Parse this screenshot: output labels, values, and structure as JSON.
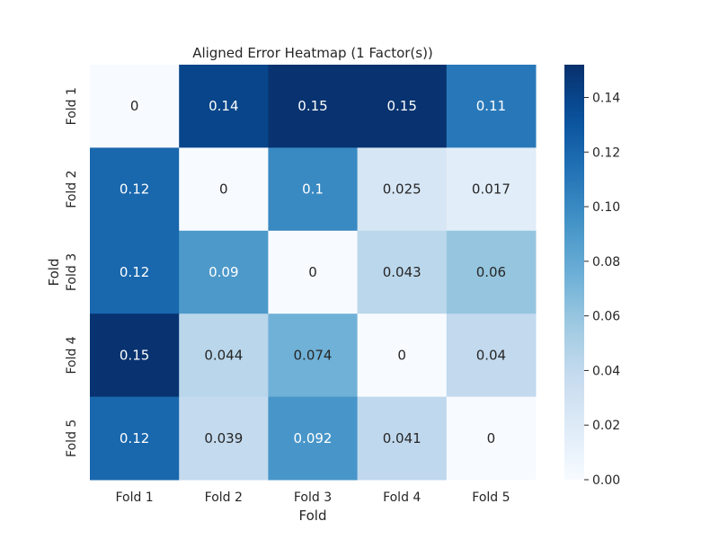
{
  "chart_data": {
    "type": "heatmap",
    "title": "Aligned Error Heatmap (1 Factor(s))",
    "xlabel": "Fold",
    "ylabel": "Fold",
    "x_categories": [
      "Fold 1",
      "Fold 2",
      "Fold 3",
      "Fold 4",
      "Fold 5"
    ],
    "y_categories": [
      "Fold 1",
      "Fold 2",
      "Fold 3",
      "Fold 4",
      "Fold 5"
    ],
    "values": [
      [
        0,
        0.14,
        0.15,
        0.15,
        0.11
      ],
      [
        0.12,
        0,
        0.1,
        0.025,
        0.017
      ],
      [
        0.12,
        0.09,
        0,
        0.043,
        0.06
      ],
      [
        0.15,
        0.044,
        0.074,
        0,
        0.04
      ],
      [
        0.12,
        0.039,
        0.092,
        0.041,
        0
      ]
    ],
    "annotations": [
      [
        "0",
        "0.14",
        "0.15",
        "0.15",
        "0.11"
      ],
      [
        "0.12",
        "0",
        "0.1",
        "0.025",
        "0.017"
      ],
      [
        "0.12",
        "0.09",
        "0",
        "0.043",
        "0.06"
      ],
      [
        "0.15",
        "0.044",
        "0.074",
        "0",
        "0.04"
      ],
      [
        "0.12",
        "0.039",
        "0.092",
        "0.041",
        "0"
      ]
    ],
    "color_range": [
      0,
      0.152
    ],
    "colormap": "Blues",
    "colorbar_ticks": [
      "0.00",
      "0.02",
      "0.04",
      "0.06",
      "0.08",
      "0.10",
      "0.12",
      "0.14"
    ],
    "grid": false
  }
}
